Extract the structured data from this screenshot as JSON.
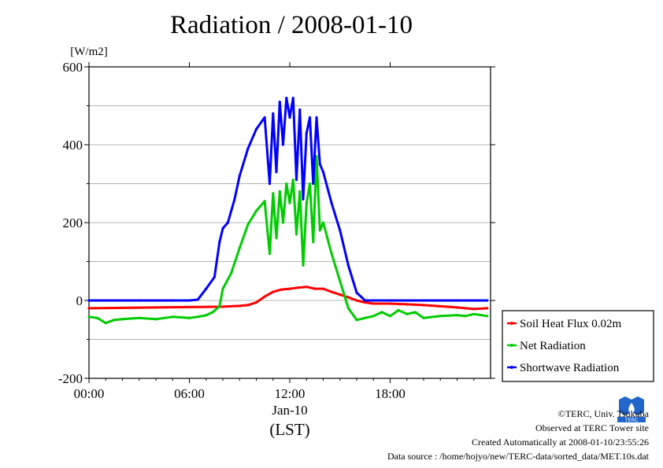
{
  "chart_data": {
    "type": "line",
    "title": "Radiation / 2008-01-10",
    "ylabel": "[W/m2]",
    "xlabel": "(LST)",
    "date_label": "Jan-10",
    "ylim": [
      -200,
      600
    ],
    "yticks": [
      -200,
      0,
      200,
      400,
      600
    ],
    "ytick_labels": [
      "-200",
      "0",
      "200",
      "400",
      "600"
    ],
    "xlim": [
      0,
      24
    ],
    "xticks": [
      0,
      6,
      12,
      18
    ],
    "xtick_labels": [
      "00:00",
      "06:00",
      "12:00",
      "18:00"
    ],
    "grid": true,
    "legend_position": "right",
    "series": [
      {
        "name": "Soil Heat Flux 0.02m",
        "color": "#ff0000",
        "x": [
          0,
          2,
          4,
          6,
          8,
          9,
          9.5,
          10,
          10.5,
          11,
          11.5,
          12,
          12.5,
          13,
          13.5,
          14,
          14.5,
          15,
          15.5,
          16,
          16.5,
          17,
          18,
          19,
          20,
          21,
          22,
          23,
          23.8
        ],
        "y": [
          -20,
          -19,
          -18,
          -17,
          -16,
          -14,
          -12,
          -5,
          10,
          22,
          28,
          30,
          33,
          35,
          30,
          30,
          22,
          15,
          8,
          0,
          -5,
          -8,
          -8,
          -10,
          -12,
          -15,
          -18,
          -22,
          -20
        ]
      },
      {
        "name": "Net Radiation",
        "color": "#00cc00",
        "x": [
          0,
          0.5,
          1,
          1.5,
          2,
          3,
          4,
          5,
          6,
          6.5,
          7,
          7.4,
          7.8,
          8,
          8.5,
          9,
          9.5,
          10,
          10.5,
          10.8,
          11,
          11.2,
          11.4,
          11.6,
          11.8,
          12,
          12.2,
          12.4,
          12.6,
          12.8,
          13,
          13.2,
          13.4,
          13.6,
          13.8,
          14,
          14.5,
          15,
          15.5,
          16,
          16.5,
          17,
          17.5,
          18,
          18.5,
          19,
          19.5,
          20,
          21,
          22,
          22.5,
          23,
          23.5,
          23.8
        ],
        "y": [
          -42,
          -45,
          -58,
          -50,
          -48,
          -45,
          -48,
          -42,
          -45,
          -42,
          -38,
          -30,
          -15,
          30,
          70,
          135,
          195,
          230,
          255,
          120,
          275,
          160,
          280,
          200,
          300,
          250,
          310,
          170,
          280,
          90,
          250,
          300,
          150,
          370,
          180,
          200,
          120,
          50,
          -20,
          -50,
          -45,
          -40,
          -30,
          -40,
          -25,
          -35,
          -30,
          -45,
          -40,
          -38,
          -40,
          -35,
          -38,
          -40
        ]
      },
      {
        "name": "Shortwave Radiation",
        "color": "#0000ff",
        "x": [
          0,
          1,
          2,
          3,
          4,
          5,
          6,
          6.5,
          7,
          7.5,
          7.8,
          8,
          8.3,
          8.7,
          9,
          9.5,
          10,
          10.5,
          10.8,
          11,
          11.2,
          11.4,
          11.6,
          11.8,
          12,
          12.2,
          12.4,
          12.6,
          12.8,
          13,
          13.2,
          13.4,
          13.6,
          13.8,
          14,
          14.5,
          15,
          15.5,
          16,
          16.5,
          17,
          18,
          19,
          20,
          21,
          22,
          23,
          23.8
        ],
        "y": [
          0,
          0,
          0,
          0,
          0,
          0,
          0,
          2,
          30,
          60,
          150,
          185,
          200,
          260,
          320,
          390,
          440,
          470,
          300,
          480,
          330,
          510,
          400,
          520,
          470,
          520,
          310,
          490,
          260,
          430,
          470,
          300,
          470,
          350,
          330,
          250,
          180,
          90,
          20,
          0,
          0,
          0,
          0,
          0,
          0,
          0,
          0,
          0
        ]
      }
    ]
  },
  "footer": {
    "copyright": "©TERC, Univ. Tsukuba",
    "site": "Observed at TERC Tower site",
    "created": "Created Automatically at 2008-01-10/23:55:26",
    "source": "Data source : /home/hojyo/new/TERC-data/sorted_data/MET.10s.dat"
  },
  "logo_text": "TERC"
}
